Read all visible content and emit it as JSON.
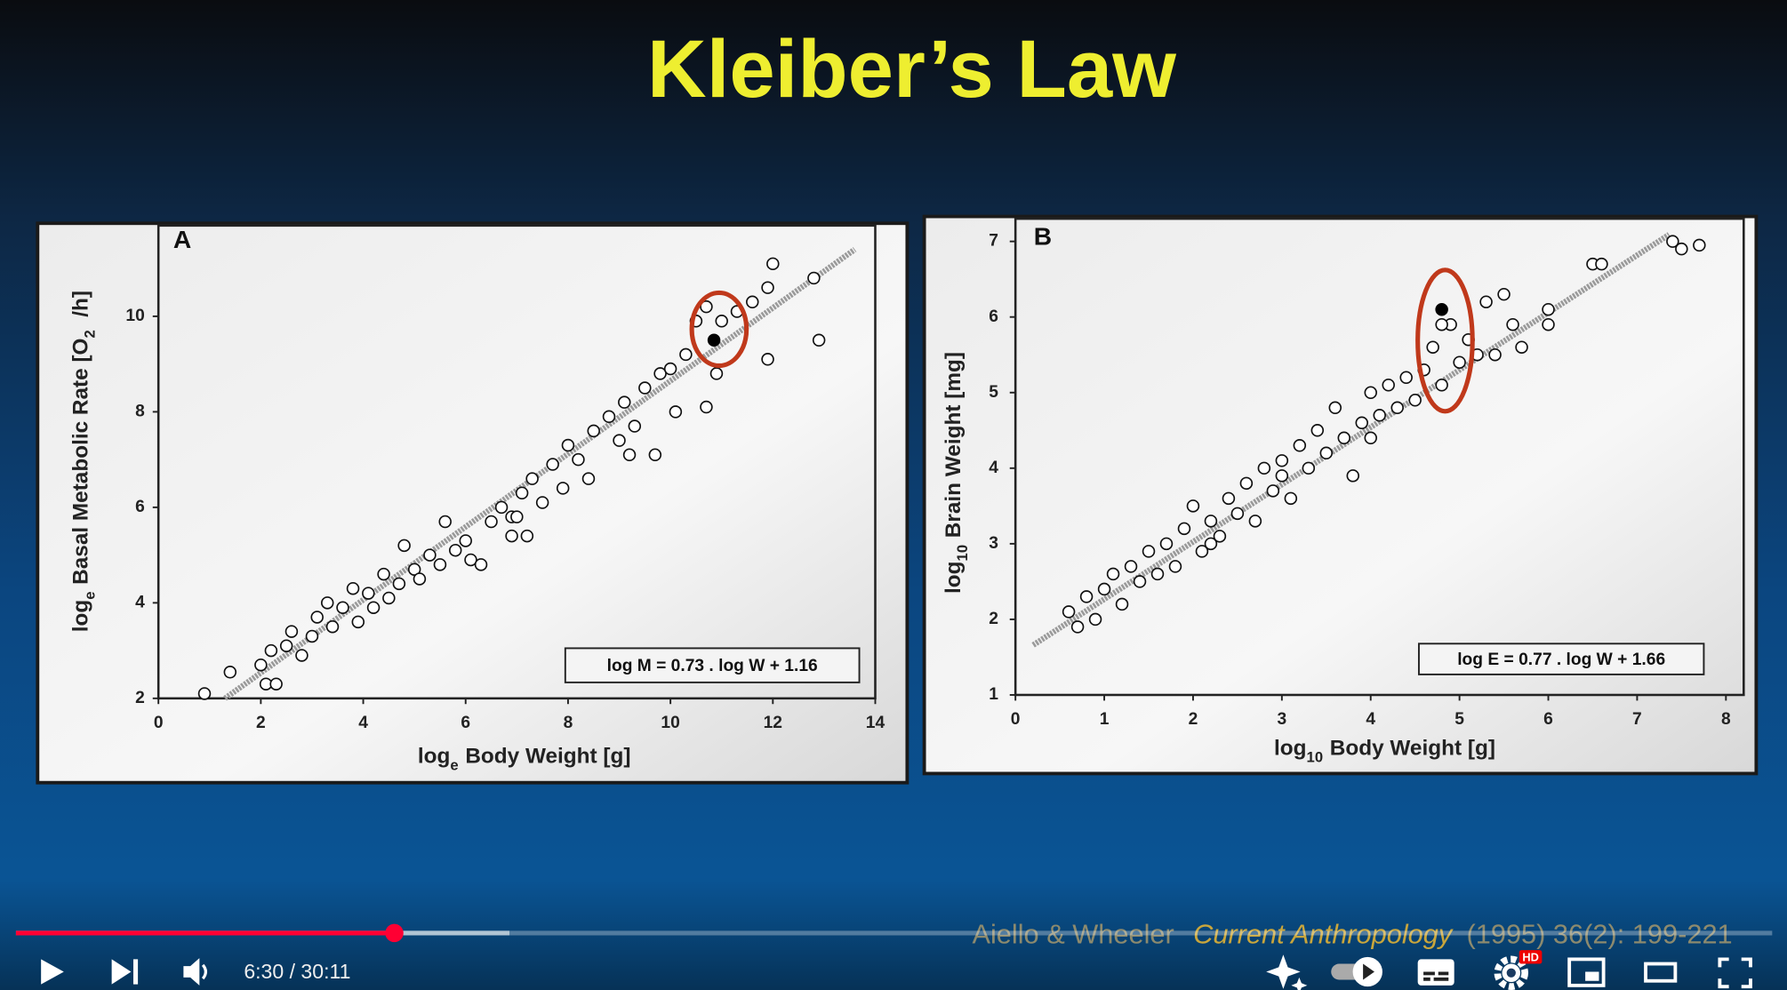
{
  "slide": {
    "title": "Kleiber’s Law",
    "citation": {
      "authors": "Aiello & Wheeler",
      "journal": "Current Anthropology",
      "details": "(1995) 36(2): 199-221"
    }
  },
  "chart_data": [
    {
      "type": "scatter",
      "panel": "A",
      "xlabel": [
        "log",
        "e",
        "Body Weight [g]"
      ],
      "ylabel": [
        "log",
        "e",
        "Basal Metabolic Rate [O",
        "2",
        " /h]"
      ],
      "annotation": "log M = 0.73 . log W + 1.16",
      "xlim": [
        0,
        14
      ],
      "xticks": [
        0,
        2,
        4,
        6,
        8,
        10,
        12,
        14
      ],
      "ylim": [
        2,
        11.9
      ],
      "yticks": [
        2,
        4,
        6,
        8,
        10
      ],
      "grid": false,
      "fit": {
        "color": "#9a9a9a",
        "x": [
          1.3,
          13.6
        ],
        "values": [
          2.0,
          11.4
        ]
      },
      "series": [
        {
          "color": "#111111",
          "marker_fill": "#ffffff",
          "x": [
            0.9,
            1.4,
            2.1,
            2.3,
            2.0,
            2.2,
            2.5,
            2.6,
            2.8,
            3.0,
            3.1,
            3.3,
            3.4,
            3.6,
            3.8,
            3.9,
            4.1,
            4.2,
            4.4,
            4.5,
            4.7,
            4.8,
            5.0,
            5.1,
            5.3,
            5.5,
            5.6,
            5.8,
            6.0,
            6.1,
            6.3,
            6.5,
            6.7,
            6.9,
            7.1,
            7.2,
            7.3,
            7.5,
            7.7,
            7.9,
            8.0,
            8.2,
            8.4,
            8.5,
            8.8,
            9.0,
            9.1,
            9.3,
            9.5,
            9.7,
            9.8,
            10.0,
            10.1,
            10.3,
            10.5,
            10.7,
            10.7,
            10.9,
            11.0,
            11.3,
            11.6,
            11.9,
            11.9,
            12.0,
            12.8,
            12.9,
            7.0,
            6.9,
            9.2
          ],
          "values": [
            2.1,
            2.55,
            2.3,
            2.3,
            2.7,
            3.0,
            3.1,
            3.4,
            2.9,
            3.3,
            3.7,
            4.0,
            3.5,
            3.9,
            4.3,
            3.6,
            4.2,
            3.9,
            4.6,
            4.1,
            4.4,
            5.2,
            4.7,
            4.5,
            5.0,
            4.8,
            5.7,
            5.1,
            5.3,
            4.9,
            4.8,
            5.7,
            6.0,
            5.8,
            6.3,
            5.4,
            6.6,
            6.1,
            6.9,
            6.4,
            7.3,
            7.0,
            6.6,
            7.6,
            7.9,
            7.4,
            8.2,
            7.7,
            8.5,
            7.1,
            8.8,
            8.9,
            8.0,
            9.2,
            9.9,
            10.2,
            8.1,
            8.8,
            9.9,
            10.1,
            10.3,
            10.6,
            9.1,
            11.1,
            10.8,
            9.5,
            5.8,
            5.4,
            7.1
          ]
        },
        {
          "color": "#000000",
          "marker_fill": "#000000",
          "x": [
            10.85
          ],
          "values": [
            9.5
          ]
        }
      ]
    },
    {
      "type": "scatter",
      "panel": "B",
      "xlabel": [
        "log",
        "10",
        "Body Weight [g]"
      ],
      "ylabel": [
        "log",
        "10",
        "Brain Weight [mg]"
      ],
      "annotation": "log E = 0.77 . log W + 1.66",
      "xlim": [
        0,
        8.2
      ],
      "xticks": [
        0,
        1,
        2,
        3,
        4,
        5,
        6,
        7,
        8
      ],
      "ylim": [
        1,
        7.3
      ],
      "yticks": [
        1,
        2,
        3,
        4,
        5,
        6,
        7
      ],
      "grid": false,
      "fit": {
        "color": "#9a9a9a",
        "x": [
          0.2,
          7.36
        ],
        "values": [
          1.66,
          7.09
        ]
      },
      "series": [
        {
          "color": "#111111",
          "marker_fill": "#ffffff",
          "x": [
            0.6,
            0.7,
            0.8,
            0.9,
            1.0,
            1.1,
            1.2,
            1.3,
            1.4,
            1.5,
            1.6,
            1.7,
            1.8,
            1.9,
            2.0,
            2.1,
            2.2,
            2.3,
            2.4,
            2.5,
            2.6,
            2.7,
            2.8,
            2.9,
            3.0,
            3.1,
            3.2,
            3.3,
            3.4,
            3.5,
            3.6,
            3.7,
            3.8,
            3.9,
            4.0,
            4.1,
            4.2,
            4.3,
            4.4,
            4.5,
            4.6,
            4.7,
            4.8,
            4.9,
            4.8,
            5.0,
            5.1,
            5.2,
            5.3,
            5.4,
            5.5,
            5.6,
            5.7,
            6.0,
            6.0,
            6.5,
            6.6,
            7.4,
            7.5,
            7.7,
            2.2,
            3.0,
            4.0
          ],
          "values": [
            2.1,
            1.9,
            2.3,
            2.0,
            2.4,
            2.6,
            2.2,
            2.7,
            2.5,
            2.9,
            2.6,
            3.0,
            2.7,
            3.2,
            3.5,
            2.9,
            3.3,
            3.1,
            3.6,
            3.4,
            3.8,
            3.3,
            4.0,
            3.7,
            4.1,
            3.6,
            4.3,
            4.0,
            4.5,
            4.2,
            4.8,
            4.4,
            3.9,
            4.6,
            5.0,
            4.7,
            5.1,
            4.8,
            5.2,
            4.9,
            5.3,
            5.6,
            5.1,
            5.9,
            5.9,
            5.4,
            5.7,
            5.5,
            6.2,
            5.5,
            6.3,
            5.9,
            5.6,
            6.1,
            5.9,
            6.7,
            6.7,
            7.0,
            6.9,
            6.95,
            3.0,
            3.9,
            4.4
          ]
        },
        {
          "color": "#000000",
          "marker_fill": "#000000",
          "x": [
            4.8
          ],
          "values": [
            6.1
          ]
        }
      ]
    }
  ],
  "player": {
    "time": "6:30 / 30:11",
    "hd_badge": "HD"
  }
}
